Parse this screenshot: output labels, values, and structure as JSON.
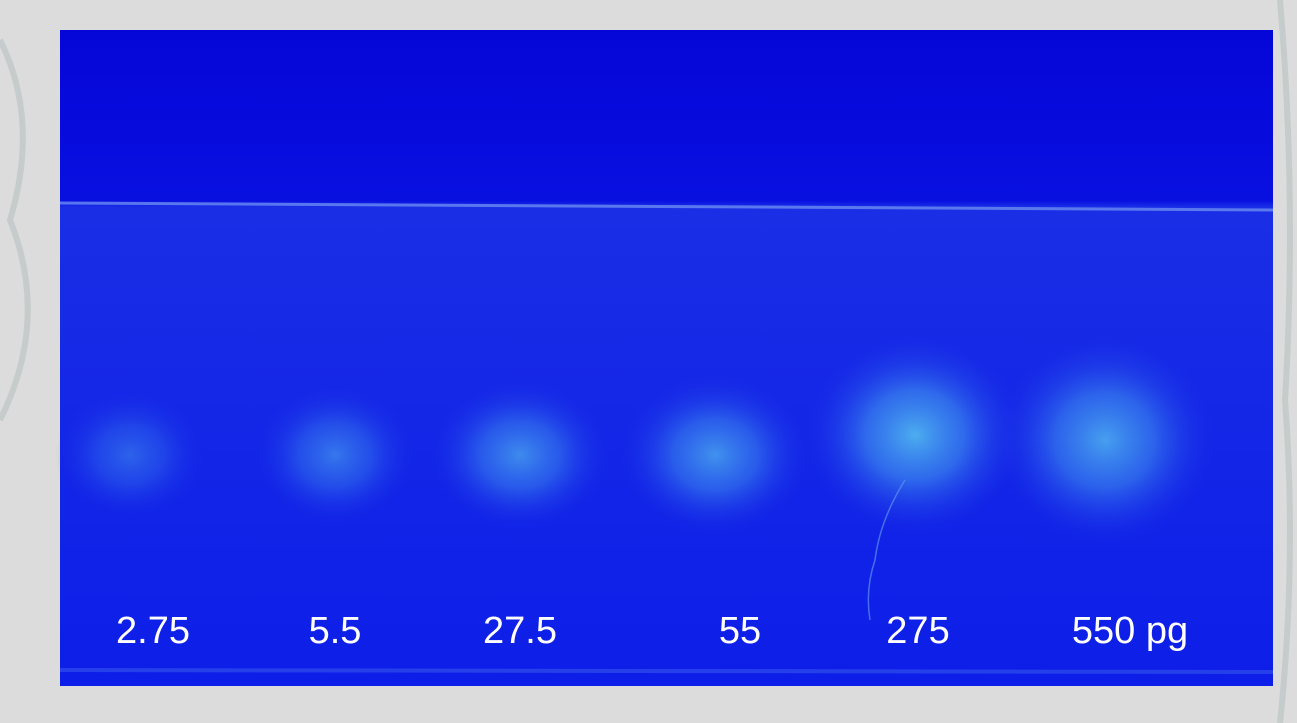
{
  "labels": [
    "2.75",
    "5.5",
    "27.5",
    "55",
    "275",
    "550 pg"
  ]
}
